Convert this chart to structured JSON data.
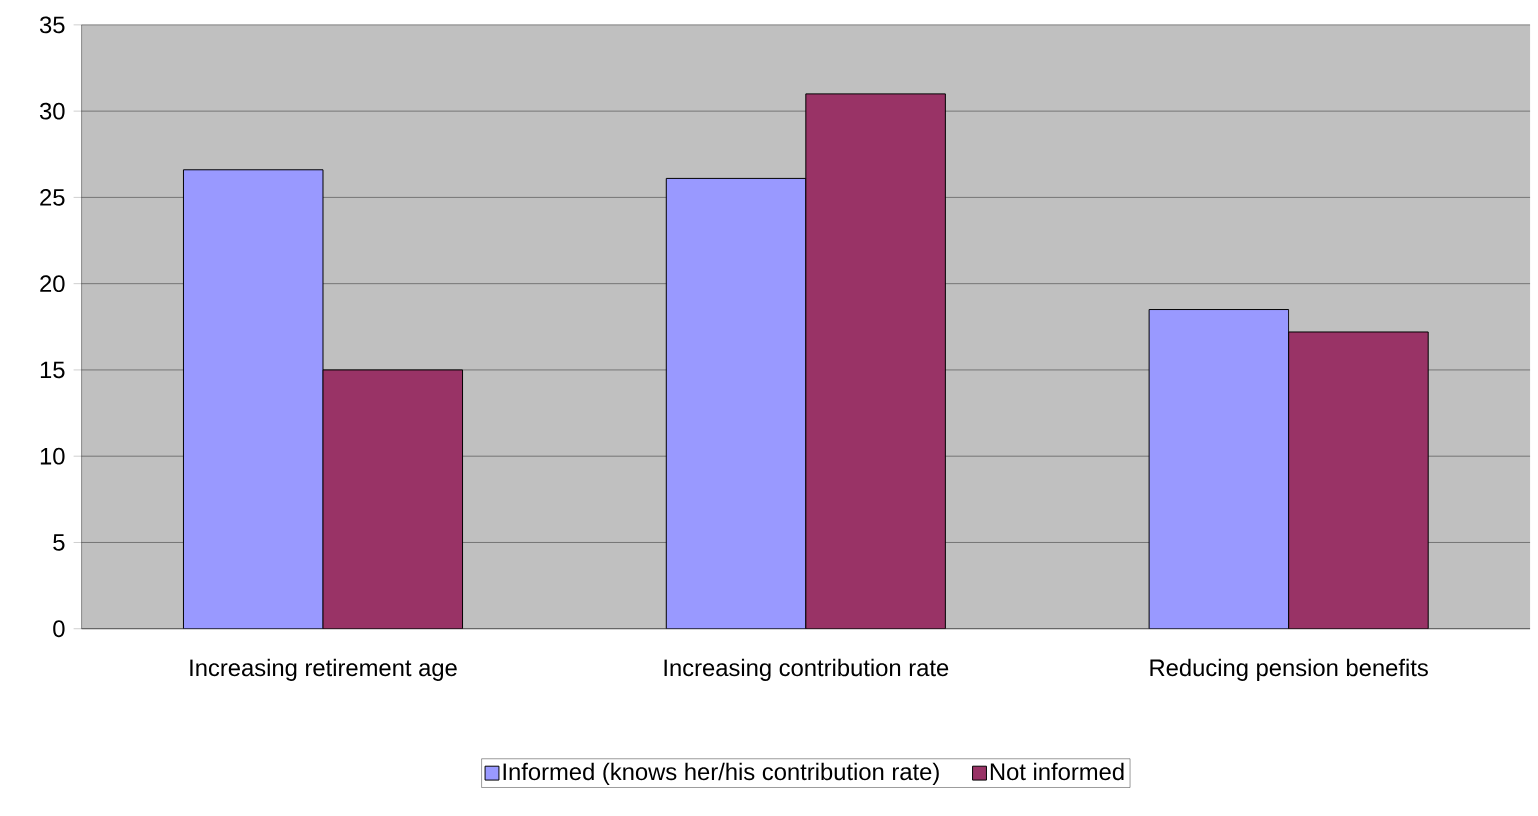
{
  "chart_data": {
    "type": "bar",
    "categories": [
      "Increasing retirement age",
      "Increasing contribution rate",
      "Reducing pension benefits"
    ],
    "series": [
      {
        "name": "Informed (knows her/his contribution rate)",
        "color": "#9999ff",
        "values": [
          26.6,
          26.1,
          18.5
        ]
      },
      {
        "name": "Not informed",
        "color": "#993366",
        "values": [
          15.0,
          31.0,
          17.2
        ]
      }
    ],
    "ylim": [
      0,
      35
    ],
    "yticks": [
      0,
      5,
      10,
      15,
      20,
      25,
      30,
      35
    ],
    "grid": "y",
    "legend": "bottom"
  }
}
